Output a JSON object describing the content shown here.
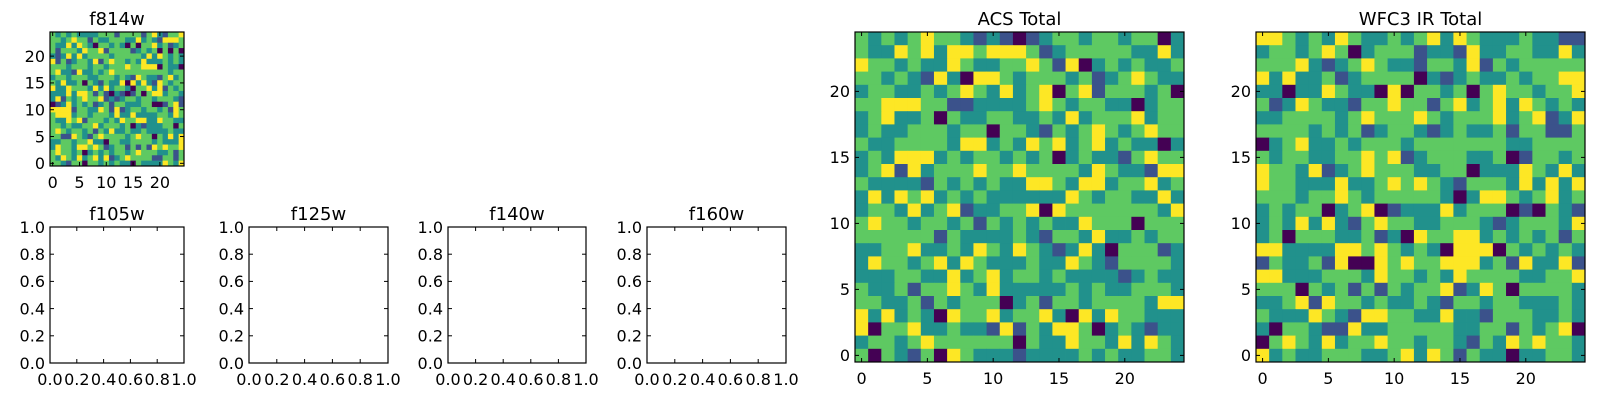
{
  "colors": {
    "axes": "#000000",
    "background": "#ffffff",
    "colormap": [
      "#440154",
      "#3b528b",
      "#21918c",
      "#5ec962",
      "#fde725"
    ]
  },
  "chart_data": [
    {
      "id": "f814w",
      "type": "heatmap",
      "title": "f814w",
      "grid_size": 25,
      "xlim": [
        -0.5,
        24.5
      ],
      "ylim": [
        -0.5,
        24.5
      ],
      "xticks": [
        0,
        5,
        10,
        15,
        20
      ],
      "yticks": [
        0,
        5,
        10,
        15,
        20
      ],
      "xtick_labels": [
        "0",
        "5",
        "10",
        "15",
        "20"
      ],
      "ytick_labels": [
        "0",
        "5",
        "10",
        "15",
        "20"
      ]
    },
    {
      "id": "f105w",
      "type": "heatmap",
      "title": "f105w",
      "empty": true,
      "xlim": [
        0.0,
        1.0
      ],
      "ylim": [
        0.0,
        1.0
      ],
      "xticks": [
        0.0,
        0.2,
        0.4,
        0.6,
        0.8,
        1.0
      ],
      "yticks": [
        0.0,
        0.2,
        0.4,
        0.6,
        0.8,
        1.0
      ],
      "xtick_labels": [
        "0.0",
        "0.2",
        "0.4",
        "0.6",
        "0.8",
        "1.0"
      ],
      "ytick_labels": [
        "0.0",
        "0.2",
        "0.4",
        "0.6",
        "0.8",
        "1.0"
      ]
    },
    {
      "id": "f125w",
      "type": "heatmap",
      "title": "f125w",
      "empty": true,
      "xlim": [
        0.0,
        1.0
      ],
      "ylim": [
        0.0,
        1.0
      ],
      "xticks": [
        0.0,
        0.2,
        0.4,
        0.6,
        0.8,
        1.0
      ],
      "yticks": [
        0.0,
        0.2,
        0.4,
        0.6,
        0.8,
        1.0
      ],
      "xtick_labels": [
        "0.0",
        "0.2",
        "0.4",
        "0.6",
        "0.8",
        "1.0"
      ],
      "ytick_labels": [
        "0.0",
        "0.2",
        "0.4",
        "0.6",
        "0.8",
        "1.0"
      ]
    },
    {
      "id": "f140w",
      "type": "heatmap",
      "title": "f140w",
      "empty": true,
      "xlim": [
        0.0,
        1.0
      ],
      "ylim": [
        0.0,
        1.0
      ],
      "xticks": [
        0.0,
        0.2,
        0.4,
        0.6,
        0.8,
        1.0
      ],
      "yticks": [
        0.0,
        0.2,
        0.4,
        0.6,
        0.8,
        1.0
      ],
      "xtick_labels": [
        "0.0",
        "0.2",
        "0.4",
        "0.6",
        "0.8",
        "1.0"
      ],
      "ytick_labels": [
        "0.0",
        "0.2",
        "0.4",
        "0.6",
        "0.8",
        "1.0"
      ]
    },
    {
      "id": "f160w",
      "type": "heatmap",
      "title": "f160w",
      "empty": true,
      "xlim": [
        0.0,
        1.0
      ],
      "ylim": [
        0.0,
        1.0
      ],
      "xticks": [
        0.0,
        0.2,
        0.4,
        0.6,
        0.8,
        1.0
      ],
      "yticks": [
        0.0,
        0.2,
        0.4,
        0.6,
        0.8,
        1.0
      ],
      "xtick_labels": [
        "0.0",
        "0.2",
        "0.4",
        "0.6",
        "0.8",
        "1.0"
      ],
      "ytick_labels": [
        "0.0",
        "0.2",
        "0.4",
        "0.6",
        "0.8",
        "1.0"
      ]
    },
    {
      "id": "acs-total",
      "type": "heatmap",
      "title": "ACS Total",
      "grid_size": 25,
      "xlim": [
        -0.5,
        24.5
      ],
      "ylim": [
        -0.5,
        24.5
      ],
      "xticks": [
        0,
        5,
        10,
        15,
        20
      ],
      "yticks": [
        0,
        5,
        10,
        15,
        20
      ],
      "xtick_labels": [
        "0",
        "5",
        "10",
        "15",
        "20"
      ],
      "ytick_labels": [
        "0",
        "5",
        "10",
        "15",
        "20"
      ]
    },
    {
      "id": "wfc3-ir-total",
      "type": "heatmap",
      "title": "WFC3 IR Total",
      "grid_size": 25,
      "xlim": [
        -0.5,
        24.5
      ],
      "ylim": [
        -0.5,
        24.5
      ],
      "xticks": [
        0,
        5,
        10,
        15,
        20
      ],
      "yticks": [
        0,
        5,
        10,
        15,
        20
      ],
      "xtick_labels": [
        "0",
        "5",
        "10",
        "15",
        "20"
      ],
      "ytick_labels": [
        "0",
        "5",
        "10",
        "15",
        "20"
      ]
    }
  ]
}
